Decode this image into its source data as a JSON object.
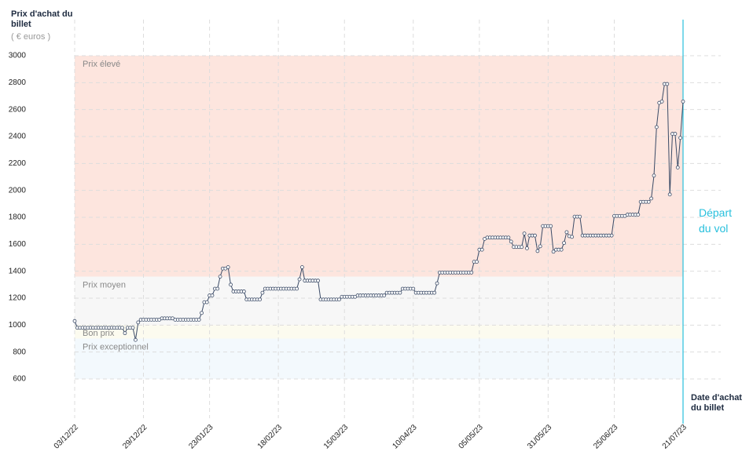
{
  "chart_data": {
    "type": "line",
    "y_title": "Prix d'achat du billet",
    "y_unit": "( € euros )",
    "x_title": "Date d'achat du billet",
    "ylim": [
      600,
      3000
    ],
    "yticks": [
      600,
      800,
      1000,
      1200,
      1400,
      1600,
      1800,
      2000,
      2200,
      2400,
      2600,
      2800,
      3000
    ],
    "xlim": [
      "03/12/22",
      "21/07/23"
    ],
    "xticks": [
      "03/12/22",
      "29/12/22",
      "23/01/23",
      "18/02/23",
      "15/03/23",
      "10/04/23",
      "05/05/23",
      "31/05/23",
      "25/06/23",
      "21/07/23"
    ],
    "grid": true,
    "bands": [
      {
        "label": "Prix élevé",
        "range": [
          1360,
          3000
        ],
        "color": "#fde5de"
      },
      {
        "label": "Prix moyen",
        "range": [
          1000,
          1360
        ],
        "color": "#f7f7f7"
      },
      {
        "label": "Bon prix",
        "range": [
          900,
          1000
        ],
        "color": "#fcfbef"
      },
      {
        "label": "Prix exceptionnel",
        "range": [
          600,
          900
        ],
        "color": "#f3f9fd"
      }
    ],
    "departure": {
      "label": "Départ du vol",
      "x": "21/07/23",
      "color": "#29c0dd"
    },
    "series": [
      {
        "name": "Prix",
        "color": "#3a4a66",
        "x": [
          "03/12/22",
          "04/12/22",
          "05/12/22",
          "06/12/22",
          "07/12/22",
          "08/12/22",
          "09/12/22",
          "10/12/22",
          "11/12/22",
          "12/12/22",
          "13/12/22",
          "14/12/22",
          "15/12/22",
          "16/12/22",
          "17/12/22",
          "18/12/22",
          "19/12/22",
          "20/12/22",
          "21/12/22",
          "22/12/22",
          "23/12/22",
          "24/12/22",
          "25/12/22",
          "26/12/22",
          "27/12/22",
          "28/12/22",
          "29/12/22",
          "30/12/22",
          "31/12/22",
          "01/01/23",
          "02/01/23",
          "03/01/23",
          "04/01/23",
          "05/01/23",
          "06/01/23",
          "07/01/23",
          "08/01/23",
          "09/01/23",
          "10/01/23",
          "11/01/23",
          "12/01/23",
          "13/01/23",
          "14/01/23",
          "15/01/23",
          "16/01/23",
          "17/01/23",
          "18/01/23",
          "19/01/23",
          "20/01/23",
          "21/01/23",
          "22/01/23",
          "23/01/23",
          "24/01/23",
          "25/01/23",
          "26/01/23",
          "27/01/23",
          "28/01/23",
          "29/01/23",
          "30/01/23",
          "31/01/23",
          "01/02/23",
          "02/02/23",
          "03/02/23",
          "04/02/23",
          "05/02/23",
          "06/02/23",
          "07/02/23",
          "08/02/23",
          "09/02/23",
          "10/02/23",
          "11/02/23",
          "12/02/23",
          "13/02/23",
          "14/02/23",
          "15/02/23",
          "16/02/23",
          "17/02/23",
          "18/02/23",
          "19/02/23",
          "20/02/23",
          "21/02/23",
          "22/02/23",
          "23/02/23",
          "24/02/23",
          "25/02/23",
          "26/02/23",
          "27/02/23",
          "28/02/23",
          "01/03/23",
          "02/03/23",
          "03/03/23",
          "04/03/23",
          "05/03/23",
          "06/03/23",
          "07/03/23",
          "08/03/23",
          "09/03/23",
          "10/03/23",
          "11/03/23",
          "12/03/23",
          "13/03/23",
          "14/03/23",
          "15/03/23",
          "16/03/23",
          "17/03/23",
          "18/03/23",
          "19/03/23",
          "20/03/23",
          "21/03/23",
          "22/03/23",
          "23/03/23",
          "24/03/23",
          "25/03/23",
          "26/03/23",
          "27/03/23",
          "28/03/23",
          "29/03/23",
          "30/03/23",
          "31/03/23",
          "01/04/23",
          "02/04/23",
          "03/04/23",
          "04/04/23",
          "05/04/23",
          "06/04/23",
          "07/04/23",
          "08/04/23",
          "09/04/23",
          "10/04/23",
          "11/04/23",
          "12/04/23",
          "13/04/23",
          "14/04/23",
          "15/04/23",
          "16/04/23",
          "17/04/23",
          "18/04/23",
          "19/04/23",
          "20/04/23",
          "21/04/23",
          "22/04/23",
          "23/04/23",
          "24/04/23",
          "25/04/23",
          "26/04/23",
          "27/04/23",
          "28/04/23",
          "29/04/23",
          "30/04/23",
          "01/05/23",
          "02/05/23",
          "03/05/23",
          "04/05/23",
          "05/05/23",
          "06/05/23",
          "07/05/23",
          "08/05/23",
          "09/05/23",
          "10/05/23",
          "11/05/23",
          "12/05/23",
          "13/05/23",
          "14/05/23",
          "15/05/23",
          "16/05/23",
          "17/05/23",
          "18/05/23",
          "19/05/23",
          "20/05/23",
          "21/05/23",
          "22/05/23",
          "23/05/23",
          "24/05/23",
          "25/05/23",
          "26/05/23",
          "27/05/23",
          "28/05/23",
          "29/05/23",
          "30/05/23",
          "31/05/23",
          "01/06/23",
          "02/06/23",
          "03/06/23",
          "04/06/23",
          "05/06/23",
          "06/06/23",
          "07/06/23",
          "08/06/23",
          "09/06/23",
          "10/06/23",
          "11/06/23",
          "12/06/23",
          "13/06/23",
          "14/06/23",
          "15/06/23",
          "16/06/23",
          "17/06/23",
          "18/06/23",
          "19/06/23",
          "20/06/23",
          "21/06/23",
          "22/06/23",
          "23/06/23",
          "24/06/23",
          "25/06/23",
          "26/06/23",
          "27/06/23",
          "28/06/23",
          "29/06/23",
          "30/06/23",
          "01/07/23",
          "02/07/23",
          "03/07/23",
          "04/07/23",
          "05/07/23",
          "06/07/23",
          "07/07/23",
          "08/07/23",
          "09/07/23",
          "10/07/23",
          "11/07/23",
          "12/07/23",
          "13/07/23",
          "14/07/23",
          "15/07/23",
          "16/07/23",
          "17/07/23",
          "18/07/23",
          "19/07/23",
          "20/07/23",
          "21/07/23"
        ],
        "values": [
          1030,
          980,
          980,
          980,
          980,
          980,
          980,
          980,
          980,
          980,
          980,
          980,
          980,
          980,
          980,
          980,
          980,
          980,
          980,
          940,
          980,
          980,
          980,
          890,
          1020,
          1040,
          1040,
          1040,
          1040,
          1040,
          1040,
          1040,
          1040,
          1050,
          1050,
          1050,
          1050,
          1050,
          1040,
          1040,
          1040,
          1040,
          1040,
          1040,
          1040,
          1040,
          1040,
          1040,
          1090,
          1170,
          1170,
          1220,
          1220,
          1270,
          1270,
          1360,
          1420,
          1420,
          1430,
          1300,
          1250,
          1250,
          1250,
          1250,
          1250,
          1190,
          1190,
          1190,
          1190,
          1190,
          1190,
          1240,
          1270,
          1270,
          1270,
          1270,
          1270,
          1270,
          1270,
          1270,
          1270,
          1270,
          1270,
          1270,
          1270,
          1340,
          1430,
          1330,
          1330,
          1330,
          1330,
          1330,
          1330,
          1190,
          1190,
          1190,
          1190,
          1190,
          1190,
          1190,
          1190,
          1210,
          1210,
          1210,
          1210,
          1210,
          1210,
          1220,
          1220,
          1220,
          1220,
          1220,
          1220,
          1220,
          1220,
          1220,
          1220,
          1220,
          1240,
          1240,
          1240,
          1240,
          1240,
          1240,
          1270,
          1270,
          1270,
          1270,
          1270,
          1240,
          1240,
          1240,
          1240,
          1240,
          1240,
          1240,
          1240,
          1310,
          1390,
          1390,
          1390,
          1390,
          1390,
          1390,
          1390,
          1390,
          1390,
          1390,
          1390,
          1390,
          1390,
          1470,
          1470,
          1560,
          1560,
          1640,
          1650,
          1650,
          1650,
          1650,
          1650,
          1650,
          1650,
          1650,
          1650,
          1620,
          1580,
          1580,
          1580,
          1580,
          1680,
          1570,
          1665,
          1665,
          1665,
          1550,
          1585,
          1735,
          1735,
          1735,
          1735,
          1545,
          1560,
          1560,
          1560,
          1610,
          1690,
          1660,
          1655,
          1805,
          1805,
          1805,
          1665,
          1665,
          1665,
          1665,
          1665,
          1665,
          1665,
          1665,
          1665,
          1665,
          1665,
          1665,
          1810,
          1810,
          1810,
          1810,
          1810,
          1820,
          1820,
          1820,
          1820,
          1820,
          1915,
          1915,
          1915,
          1915,
          1940,
          2110,
          2470,
          2650,
          2660,
          2790,
          2790,
          1970,
          2420,
          2420,
          2170,
          2390,
          2660
        ]
      }
    ]
  }
}
